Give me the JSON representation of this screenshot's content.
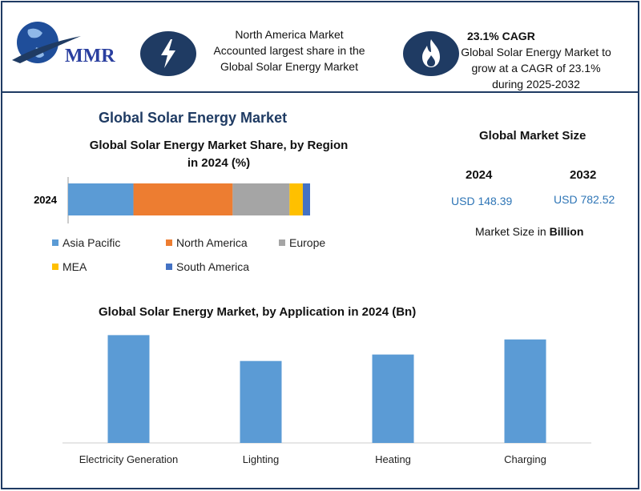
{
  "header": {
    "logo_text": "MMR",
    "na_stat": [
      "North America Market",
      "Accounted largest share in the",
      "Global Solar Energy Market"
    ],
    "cagr_title": "23.1% CAGR",
    "cagr_text": [
      "Global Solar Energy Market to",
      "grow at a CAGR of 23.1%",
      "during 2025-2032"
    ]
  },
  "market_title": "Global Solar Energy Market",
  "market_size": {
    "title": "Global Market Size",
    "years": [
      "2024",
      "2032"
    ],
    "values": [
      "USD 148.39",
      "USD 782.52"
    ],
    "unit_prefix": "Market Size in ",
    "unit_bold": "Billion"
  },
  "chart_data": [
    {
      "type": "bar",
      "orientation": "horizontal-stacked",
      "title": "Global Solar Energy Market Share, by Region in 2024 (%)",
      "title_lines": [
        "Global Solar Energy Market Share, by Region",
        "in 2024 (%)"
      ],
      "categories": [
        "2024"
      ],
      "series": [
        {
          "name": "Asia Pacific",
          "values": [
            27
          ],
          "color": "#5b9bd5"
        },
        {
          "name": "North America",
          "values": [
            41
          ],
          "color": "#ed7d31"
        },
        {
          "name": "Europe",
          "values": [
            23.5
          ],
          "color": "#a5a5a5"
        },
        {
          "name": "MEA",
          "values": [
            5.5
          ],
          "color": "#ffc000"
        },
        {
          "name": "South America",
          "values": [
            3
          ],
          "color": "#4472c4"
        }
      ],
      "xlim": [
        0,
        100
      ],
      "legend": "bottom"
    },
    {
      "type": "bar",
      "title": "Global Solar Energy Market, by Application in 2024 (Bn)",
      "categories": [
        "Electricity Generation",
        "Lighting",
        "Heating",
        "Charging"
      ],
      "values": [
        50,
        38,
        41,
        48
      ],
      "ylim": [
        0,
        52
      ],
      "color": "#5b9bd5",
      "grid": false
    }
  ],
  "colors": {
    "navy": "#1f3b63",
    "accent_blue": "#2e75b6"
  }
}
